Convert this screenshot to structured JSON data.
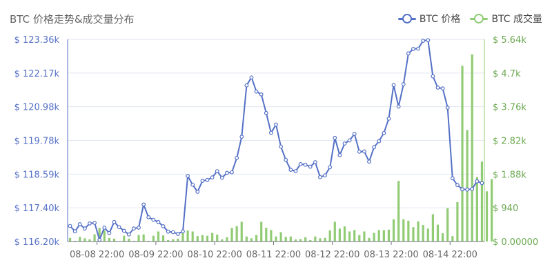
{
  "chart_data": {
    "type": "line+bar",
    "title": "BTC 价格走势&成交量分布",
    "legend_placement": "top-right",
    "colors": {
      "price": "#5470c6",
      "volume": "#91cc75",
      "axis_text": "#666666",
      "grid": "#e0e6f1"
    },
    "x_ticks": [
      "08-08 22:00",
      "08-09 22:00",
      "08-10 22:00",
      "08-11 22:00",
      "08-12 22:00",
      "08-13 22:00",
      "08-14 22:00"
    ],
    "y_left": {
      "ticks": [
        "$ 116.20k",
        "$ 117.40k",
        "$ 118.59k",
        "$ 119.78k",
        "$ 120.98k",
        "$ 122.17k",
        "$ 123.36k"
      ],
      "min": 116.2,
      "max": 123.36
    },
    "y_right": {
      "ticks": [
        "$ 0.00000",
        "$ 940",
        "$ 1.88k",
        "$ 2.82k",
        "$ 3.76k",
        "$ 4.7k",
        "$ 5.64k"
      ],
      "min": 0,
      "max": 5640
    },
    "series": [
      {
        "name": "BTC 价格",
        "axis": "left",
        "kind": "line",
        "values": [
          116.75,
          116.56,
          116.81,
          116.66,
          116.84,
          116.86,
          116.26,
          116.69,
          116.5,
          116.89,
          116.71,
          116.58,
          116.45,
          116.66,
          116.69,
          117.51,
          117.06,
          116.97,
          116.89,
          116.74,
          116.55,
          116.53,
          116.47,
          116.56,
          118.52,
          118.21,
          117.96,
          118.35,
          118.38,
          118.47,
          118.69,
          118.46,
          118.63,
          118.65,
          119.16,
          119.91,
          121.73,
          122.01,
          121.51,
          121.41,
          120.75,
          120.05,
          120.34,
          119.56,
          119.09,
          118.74,
          118.69,
          118.94,
          118.92,
          118.85,
          119.01,
          118.48,
          118.54,
          118.83,
          119.87,
          119.26,
          119.67,
          119.78,
          120.01,
          119.38,
          119.39,
          119.03,
          119.54,
          119.75,
          120.04,
          120.55,
          121.74,
          120.98,
          121.77,
          122.86,
          123.02,
          123.03,
          123.31,
          123.33,
          122.05,
          121.65,
          121.62,
          120.94,
          118.44,
          118.2,
          118.05,
          118.04,
          118.06,
          118.33,
          118.27
        ],
        "first_label": "08-08 ~10:00",
        "step_hours": 2
      },
      {
        "name": "BTC 成交量",
        "axis": "right",
        "kind": "bar",
        "values": [
          100,
          20,
          130,
          90,
          60,
          200,
          380,
          310,
          100,
          80,
          10,
          160,
          80,
          20,
          180,
          200,
          20,
          160,
          280,
          170,
          40,
          60,
          80,
          260,
          310,
          280,
          150,
          180,
          160,
          240,
          190,
          60,
          120,
          380,
          430,
          550,
          140,
          90,
          180,
          550,
          380,
          320,
          140,
          260,
          130,
          140,
          60,
          70,
          120,
          40,
          140,
          90,
          100,
          310,
          550,
          360,
          420,
          280,
          320,
          180,
          280,
          100,
          240,
          320,
          320,
          330,
          620,
          1690,
          620,
          580,
          400,
          560,
          460,
          360,
          760,
          470,
          230,
          930,
          150,
          1100,
          4900,
          3110,
          5220,
          1800,
          2230,
          1400,
          1740
        ]
      }
    ]
  }
}
